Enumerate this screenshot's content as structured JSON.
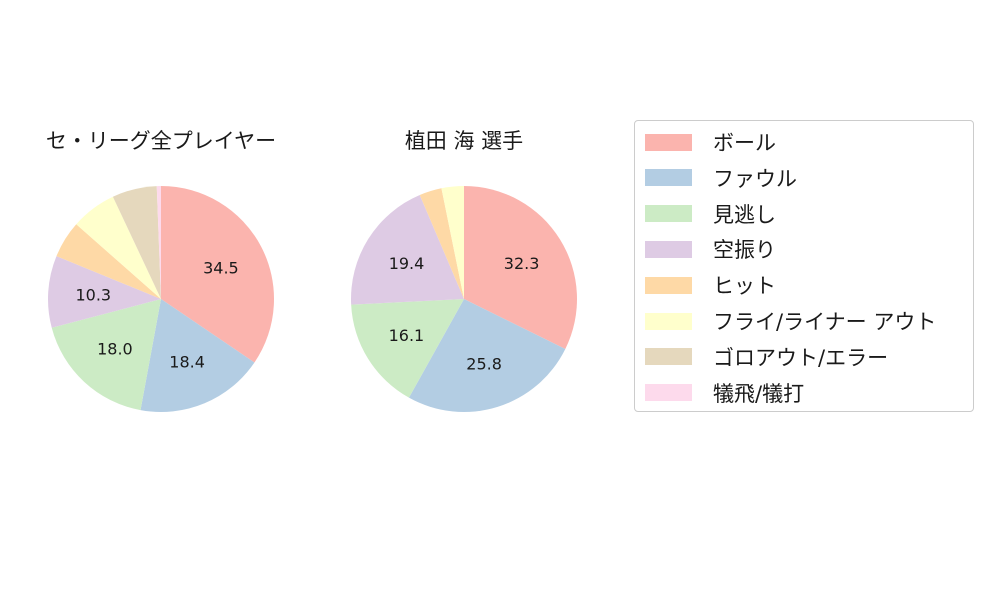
{
  "chart_data": [
    {
      "type": "pie",
      "title": "セ・リーグ全プレイヤー",
      "categories": [
        "ボール",
        "ファウル",
        "見逃し",
        "空振り",
        "ヒット",
        "フライ/ライナー アウト",
        "ゴロアウト/エラー",
        "犠飛/犠打"
      ],
      "values": [
        34.5,
        18.4,
        18.0,
        10.3,
        5.3,
        6.5,
        6.4,
        0.6
      ],
      "labels": [
        "34.5",
        "18.4",
        "18.0",
        "10.3",
        "",
        "",
        "",
        ""
      ]
    },
    {
      "type": "pie",
      "title": "植田 海  選手",
      "categories": [
        "ボール",
        "ファウル",
        "見逃し",
        "空振り",
        "ヒット",
        "フライ/ライナー アウト",
        "ゴロアウト/エラー",
        "犠飛/犠打"
      ],
      "values": [
        32.3,
        25.8,
        16.1,
        19.4,
        3.2,
        3.2,
        0,
        0
      ],
      "labels": [
        "32.3",
        "25.8",
        "16.1",
        "19.4",
        "",
        "",
        "",
        ""
      ]
    }
  ],
  "legend": {
    "items": [
      {
        "label": "ボール",
        "color": "#fbb4ae"
      },
      {
        "label": "ファウル",
        "color": "#b3cde3"
      },
      {
        "label": "見逃し",
        "color": "#ccebc5"
      },
      {
        "label": "空振り",
        "color": "#decbe4"
      },
      {
        "label": "ヒット",
        "color": "#fed9a6"
      },
      {
        "label": "フライ/ライナー アウト",
        "color": "#ffffcc"
      },
      {
        "label": "ゴロアウト/エラー",
        "color": "#e5d8bd"
      },
      {
        "label": "犠飛/犠打",
        "color": "#fddaec"
      }
    ]
  }
}
